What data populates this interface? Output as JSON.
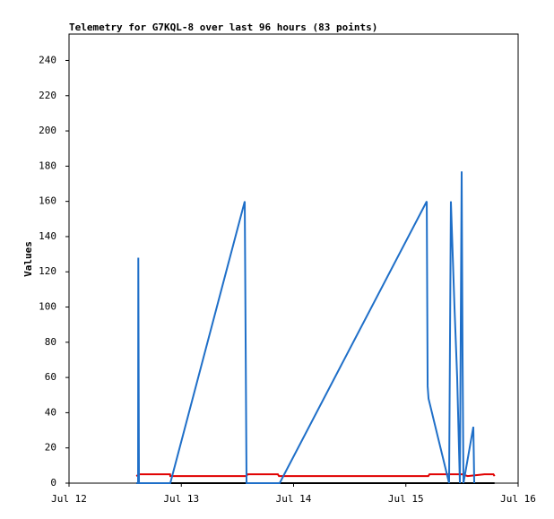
{
  "chart_data": {
    "type": "line",
    "title": "Telemetry for G7KQL-8 over last 96 hours (83 points)",
    "y_label": "Values",
    "xlim": [
      0,
      4
    ],
    "xticks": [
      {
        "value": 0,
        "label": "Jul 12"
      },
      {
        "value": 1,
        "label": "Jul 13"
      },
      {
        "value": 2,
        "label": "Jul 14"
      },
      {
        "value": 3,
        "label": "Jul 15"
      },
      {
        "value": 4,
        "label": "Jul 16"
      }
    ],
    "ylim": [
      0,
      255
    ],
    "yticks": [
      0,
      20,
      40,
      60,
      80,
      100,
      120,
      140,
      160,
      180,
      200,
      220,
      240
    ],
    "series": [
      {
        "color": "#000000",
        "x": [
          0.6,
          3.79
        ],
        "values": [
          0,
          0
        ]
      },
      {
        "color": "#e00000",
        "x": [
          0.6,
          0.625,
          0.9,
          0.902,
          1.58,
          1.59,
          1.86,
          1.87,
          3.2,
          3.21,
          3.5,
          3.55,
          3.7,
          3.78,
          3.79
        ],
        "values": [
          4,
          5,
          5,
          4,
          4,
          5,
          5,
          4,
          4,
          5,
          5,
          4,
          5,
          5,
          4
        ]
      },
      {
        "color": "#1f6fc8",
        "x": [
          0.6,
          0.615,
          0.617,
          0.623,
          0.902,
          1.565,
          1.573,
          1.581,
          1.876,
          3.186,
          3.194,
          3.202,
          3.385,
          3.401,
          3.433,
          3.457,
          3.481,
          3.497,
          3.505,
          3.513,
          3.601,
          3.609
        ],
        "values": [
          0,
          0,
          128,
          0,
          0,
          160,
          80,
          0,
          0,
          160,
          55,
          48,
          0,
          160,
          100,
          60,
          0,
          177,
          72,
          0,
          32,
          0
        ]
      }
    ]
  }
}
